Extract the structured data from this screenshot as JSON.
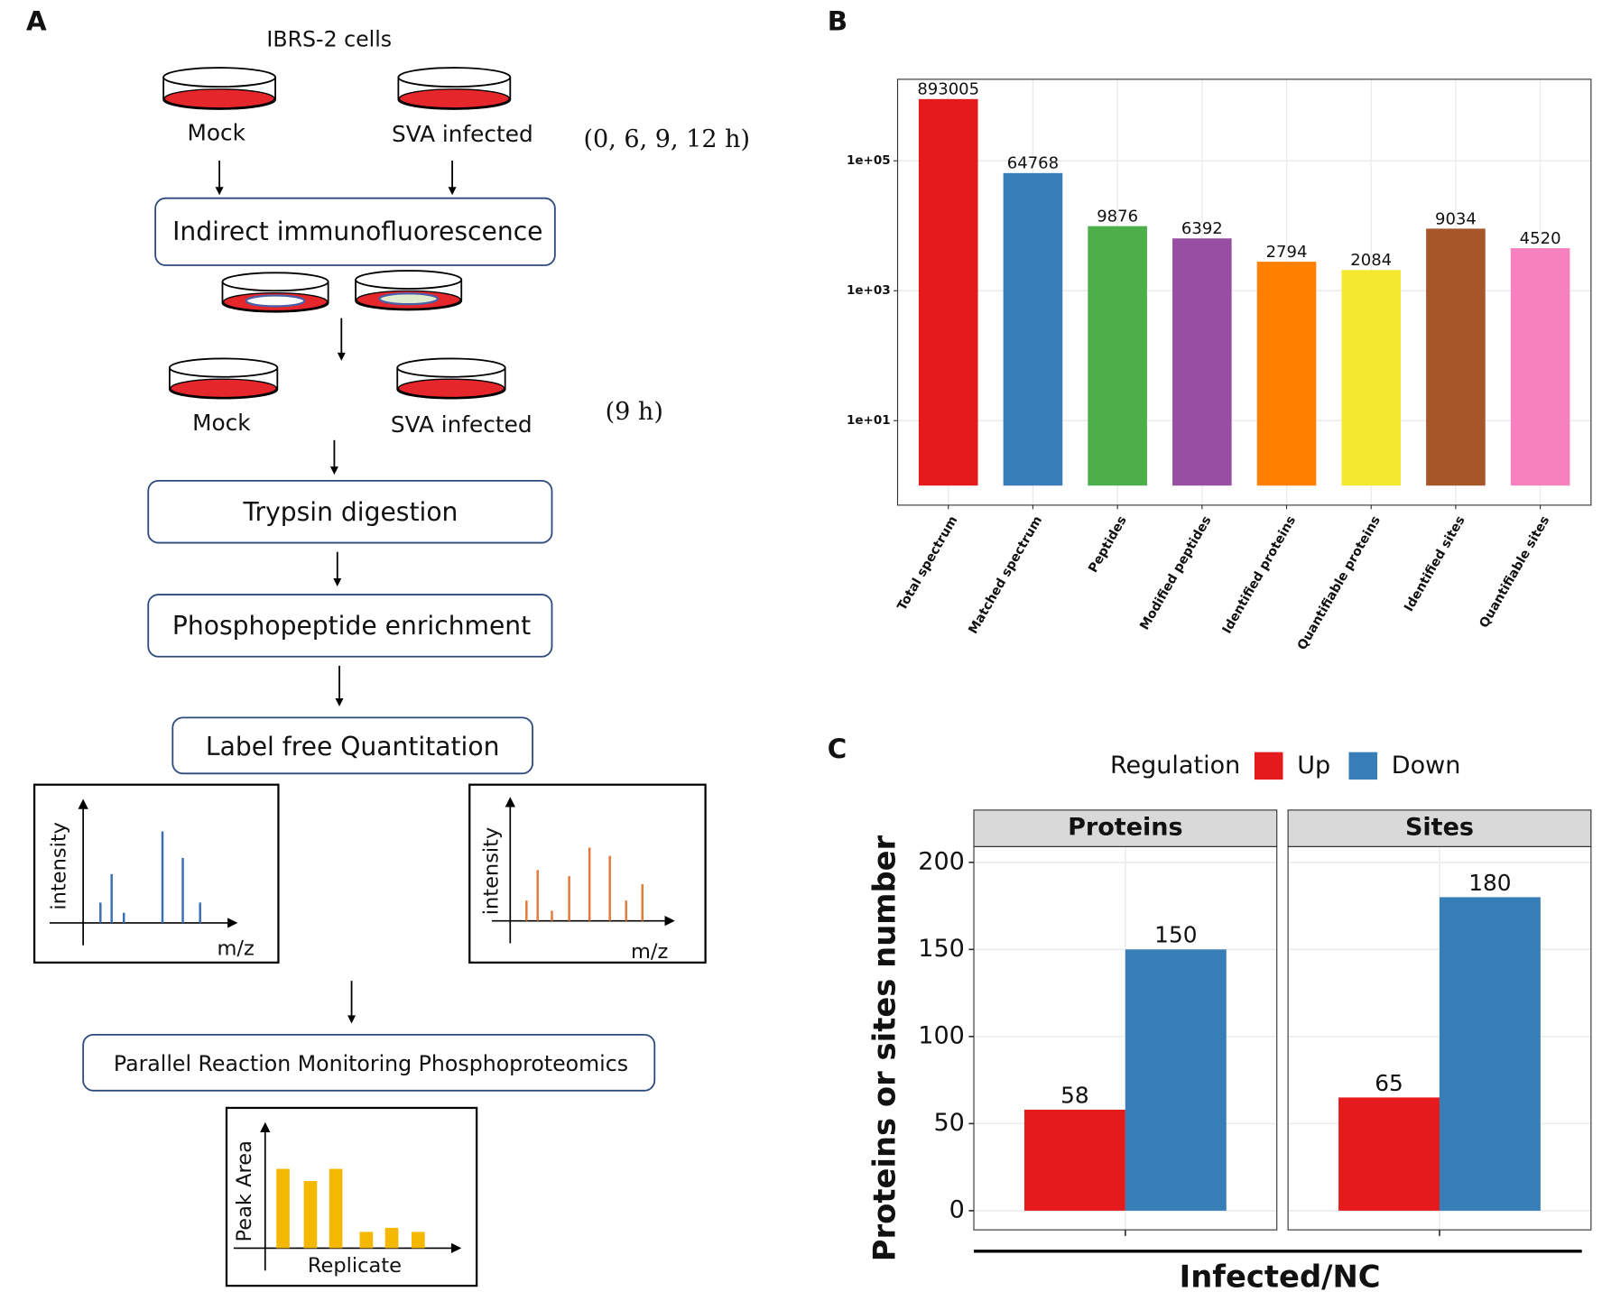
{
  "panel_labels": [
    "A",
    "B",
    "C"
  ],
  "diagram": {
    "cell_line": "IBRS-2 cells",
    "stage1": {
      "mock": "Mock",
      "infected": "SVA infected",
      "times": "(0, 6, 9, 12 h)"
    },
    "step_if": "Indirect immunofluorescence",
    "stage2": {
      "mock": "Mock",
      "infected": "SVA infected",
      "times": "(9 h)"
    },
    "step_trypsin": "Trypsin digestion",
    "step_enrich": "Phosphopeptide enrichment",
    "step_lfq": "Label free Quantitation",
    "spectrum1": {
      "y_label": "intensity",
      "x_label": "m/z"
    },
    "spectrum2": {
      "y_label": "intensity",
      "x_label": "m/z"
    },
    "step_prm": "Parallel Reaction Monitoring Phosphoproteomics",
    "prm_plot": {
      "y_label": "Peak Area",
      "x_label": "Replicate"
    }
  },
  "chart_data": [
    {
      "type": "bar",
      "log_y": true,
      "categories": [
        "Total spectrum",
        "Matched spectrum",
        "Peptides",
        "Modified peptides",
        "Identified proteins",
        "Quantifiable proteins",
        "Identified sites",
        "Quantifiable sites"
      ],
      "values": [
        893005,
        64768,
        9876,
        6392,
        2794,
        2084,
        9034,
        4520
      ],
      "colors": [
        "#e41a1c",
        "#377eb8",
        "#4daf4a",
        "#984ea3",
        "#ff7f00",
        "#f5e930",
        "#a65628",
        "#f781bf"
      ],
      "ylim": [
        0.5,
        1800000
      ],
      "yticks": [
        {
          "value": 10,
          "label": "1e+01"
        },
        {
          "value": 1000,
          "label": "1e+03"
        },
        {
          "value": 100000,
          "label": "1e+05"
        }
      ],
      "grid": true
    },
    {
      "type": "grouped_bar",
      "categories": [
        "Proteins",
        "Sites"
      ],
      "x_label": "Infected/NC",
      "y_label": "Proteins or sites number",
      "legend_title": "Regulation",
      "legend_position": "top",
      "series": [
        {
          "name": "Up",
          "color": "#e41a1c",
          "values": [
            58,
            65
          ]
        },
        {
          "name": "Down",
          "color": "#377eb8",
          "values": [
            150,
            180
          ]
        }
      ],
      "ylim": [
        -11,
        209
      ],
      "yticks": [
        0,
        50,
        100,
        150,
        200
      ],
      "grid": true
    }
  ]
}
